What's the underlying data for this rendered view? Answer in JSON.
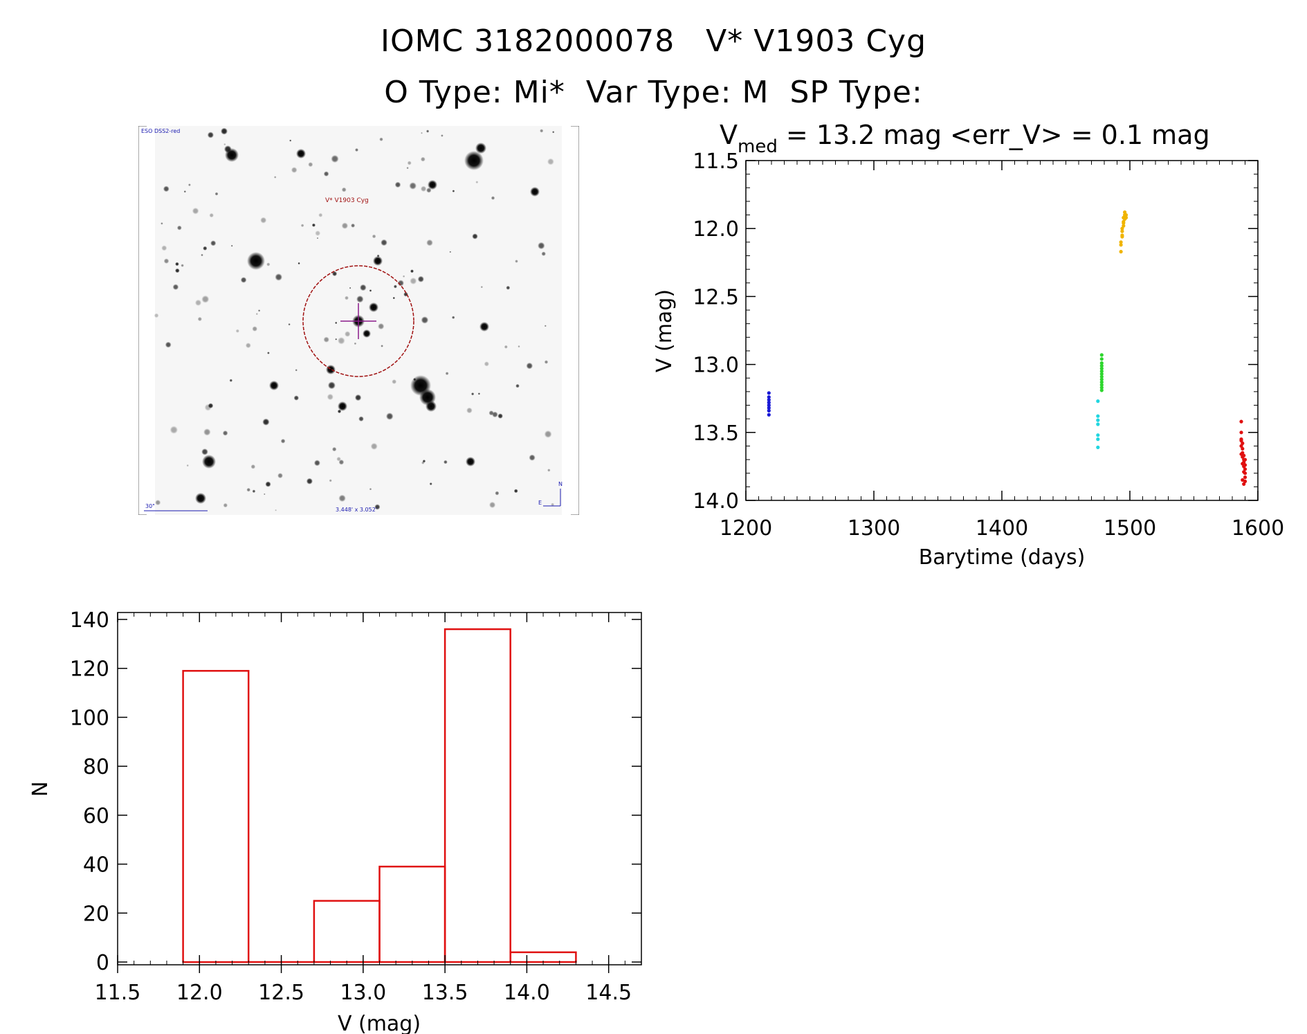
{
  "header": {
    "line1_id": "IOMC 3182000078",
    "line1_name": "V* V1903 Cyg",
    "line2_otype": "O Type: Mi*",
    "line2_vartype": "Var Type: M",
    "line2_sptype": "SP Type:"
  },
  "finder_chart": {
    "survey_label": "ESO DSS2-red",
    "target_label": "V* V1903 Cyg",
    "scale_label": "30\"",
    "fov_label": "3.448' x 3.052'",
    "north_label": "N",
    "east_label": "E"
  },
  "chart_data": [
    {
      "type": "scatter",
      "title_prefix": "V",
      "title_sub": "med",
      "title_rest": " = 13.2 mag <err_V> = 0.1 mag",
      "xlabel": "Barytime (days)",
      "ylabel": "V (mag)",
      "xlim": [
        1200,
        1600
      ],
      "ylim": [
        14.0,
        11.5
      ],
      "y_inverted": true,
      "xticks": [
        "1200",
        "1300",
        "1400",
        "1500",
        "1600"
      ],
      "yticks": [
        "11.5",
        "12.0",
        "12.5",
        "13.0",
        "13.5",
        "14.0"
      ],
      "series": [
        {
          "color": "#1a1ad6",
          "x": [
            1218,
            1218,
            1218,
            1218,
            1218,
            1218,
            1218,
            1218
          ],
          "y": [
            13.21,
            13.24,
            13.26,
            13.28,
            13.3,
            13.32,
            13.34,
            13.37
          ]
        },
        {
          "color": "#22d6e0",
          "x": [
            1475,
            1475,
            1475,
            1475,
            1475,
            1475,
            1475
          ],
          "y": [
            13.27,
            13.38,
            13.41,
            13.44,
            13.52,
            13.55,
            13.61
          ]
        },
        {
          "color": "#2ed62e",
          "x": [
            1478,
            1478,
            1478,
            1478,
            1478,
            1478,
            1478,
            1478,
            1478,
            1478,
            1478,
            1478,
            1478
          ],
          "y": [
            12.93,
            12.96,
            12.99,
            13.01,
            13.03,
            13.05,
            13.07,
            13.09,
            13.11,
            13.13,
            13.15,
            13.17,
            13.19
          ]
        },
        {
          "color": "#f0b400",
          "x": [
            1493,
            1493,
            1494,
            1494,
            1495,
            1495,
            1495,
            1496,
            1496,
            1497,
            1493,
            1494,
            1495,
            1496,
            1497,
            1494
          ],
          "y": [
            12.17,
            12.1,
            12.06,
            12.02,
            11.98,
            11.95,
            11.92,
            11.9,
            11.88,
            11.9,
            12.12,
            12.0,
            11.96,
            11.93,
            11.92,
            12.05
          ]
        },
        {
          "color": "#e01010",
          "x": [
            1587,
            1587,
            1587,
            1588,
            1588,
            1588,
            1589,
            1589,
            1589,
            1590,
            1590,
            1590,
            1587,
            1588,
            1589,
            1590,
            1588,
            1589,
            1587,
            1590,
            1588,
            1589,
            1590,
            1587
          ],
          "y": [
            13.42,
            13.5,
            13.56,
            13.58,
            13.62,
            13.65,
            13.67,
            13.7,
            13.72,
            13.74,
            13.77,
            13.8,
            13.6,
            13.68,
            13.75,
            13.83,
            13.85,
            13.88,
            13.66,
            13.7,
            13.73,
            13.79,
            13.86,
            13.55
          ]
        }
      ]
    },
    {
      "type": "bar",
      "xlabel": "V (mag)",
      "ylabel": "N",
      "xlim": [
        11.5,
        14.7
      ],
      "ylim": [
        0,
        140
      ],
      "xticks": [
        "11.5",
        "12.0",
        "12.5",
        "13.0",
        "13.5",
        "14.0",
        "14.5"
      ],
      "yticks": [
        "0",
        "20",
        "40",
        "60",
        "80",
        "100",
        "120",
        "140"
      ],
      "bin_edges": [
        11.9,
        12.3,
        12.7,
        13.1,
        13.5,
        13.9,
        14.3
      ],
      "values": [
        119,
        0,
        25,
        39,
        136,
        4
      ],
      "bar_color": "#e01010"
    }
  ]
}
